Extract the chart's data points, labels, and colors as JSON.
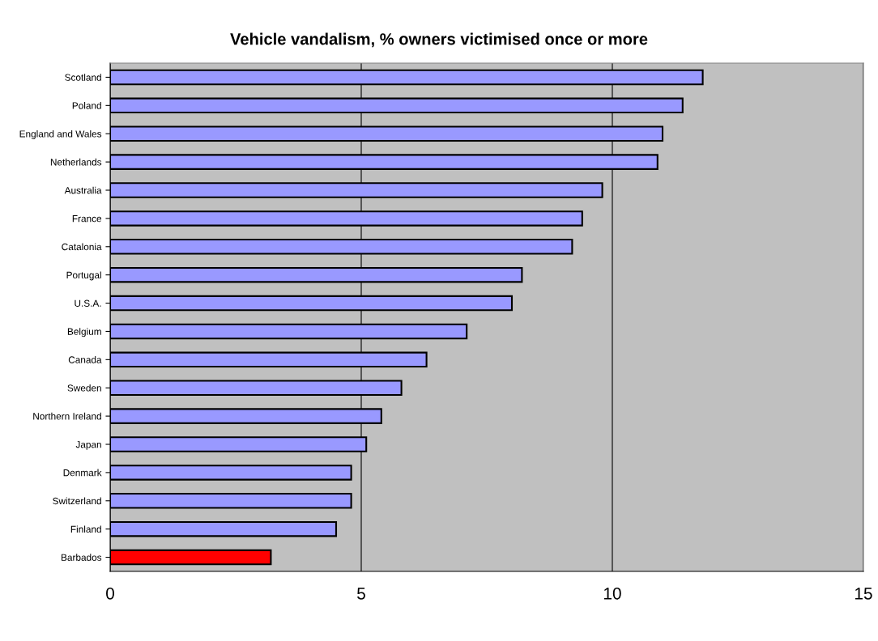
{
  "chart_data": {
    "type": "bar",
    "orientation": "horizontal",
    "title": "Vehicle vandalism, % owners victimised once or more",
    "categories": [
      "Scotland",
      "Poland",
      "England and Wales",
      "Netherlands",
      "Australia",
      "France",
      "Catalonia",
      "Portugal",
      "U.S.A.",
      "Belgium",
      "Canada",
      "Sweden",
      "Northern Ireland",
      "Japan",
      "Denmark",
      "Switzerland",
      "Finland",
      "Barbados"
    ],
    "values": [
      11.8,
      11.4,
      11.0,
      10.9,
      9.8,
      9.4,
      9.2,
      8.2,
      8.0,
      7.1,
      6.3,
      5.8,
      5.4,
      5.1,
      4.8,
      4.8,
      4.5,
      3.2
    ],
    "colors": [
      "#9999ff",
      "#9999ff",
      "#9999ff",
      "#9999ff",
      "#9999ff",
      "#9999ff",
      "#9999ff",
      "#9999ff",
      "#9999ff",
      "#9999ff",
      "#9999ff",
      "#9999ff",
      "#9999ff",
      "#9999ff",
      "#9999ff",
      "#9999ff",
      "#9999ff",
      "#ff0000"
    ],
    "xlim": [
      0,
      15
    ],
    "xticks": [
      0,
      5,
      10,
      15
    ],
    "grid": "x",
    "legend": false
  }
}
